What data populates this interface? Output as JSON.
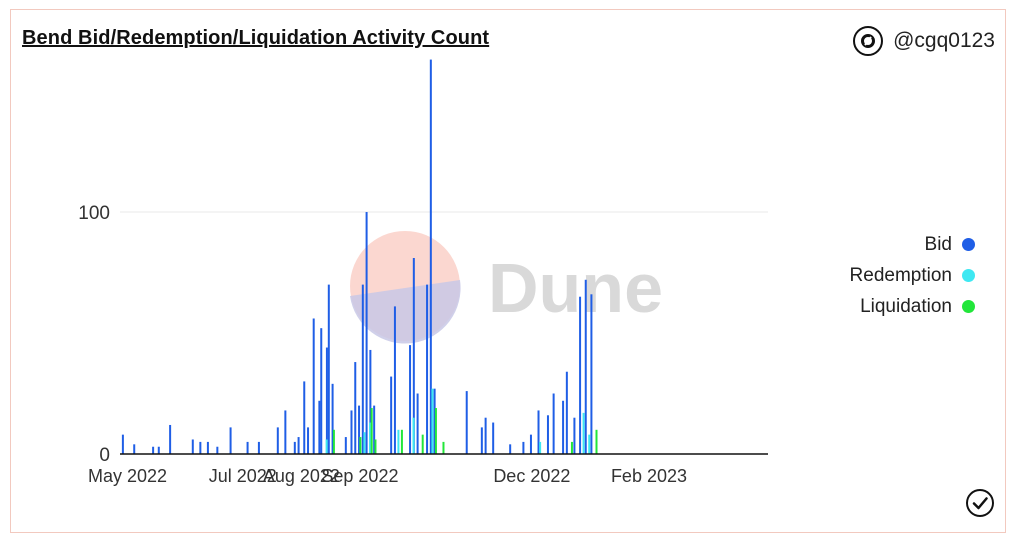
{
  "header": {
    "title": "Bend Bid/Redemption/Liquidation Activity Count",
    "author": "@cgq0123"
  },
  "watermark": {
    "text": "Dune"
  },
  "colors": {
    "bid": "#1f5ee6",
    "redemption": "#3ee8f2",
    "liquidation": "#22e63a"
  },
  "chart_data": {
    "type": "bar",
    "title": "Bend Bid/Redemption/Liquidation Activity Count",
    "x_range": [
      "2022-04-27",
      "2023-04-05"
    ],
    "ylim": [
      0,
      162
    ],
    "y_ticks": [
      0,
      100
    ],
    "x_ticks": [
      {
        "date": "2022-05-01",
        "label": "May 2022"
      },
      {
        "date": "2022-07-01",
        "label": "Jul 2022"
      },
      {
        "date": "2022-08-01",
        "label": "Aug 2022"
      },
      {
        "date": "2022-09-01",
        "label": "Sep 2022"
      },
      {
        "date": "2022-12-01",
        "label": "Dec 2022"
      },
      {
        "date": "2023-02-01",
        "label": "Feb 2023"
      }
    ],
    "legend_position": "right",
    "grid": true,
    "series": [
      {
        "name": "Bid",
        "color": "#1f5ee6",
        "points": [
          [
            "2022-04-28",
            8
          ],
          [
            "2022-05-04",
            4
          ],
          [
            "2022-05-14",
            3
          ],
          [
            "2022-05-17",
            3
          ],
          [
            "2022-05-23",
            12
          ],
          [
            "2022-06-04",
            6
          ],
          [
            "2022-06-08",
            5
          ],
          [
            "2022-06-12",
            5
          ],
          [
            "2022-06-17",
            3
          ],
          [
            "2022-06-24",
            11
          ],
          [
            "2022-07-03",
            5
          ],
          [
            "2022-07-09",
            5
          ],
          [
            "2022-07-19",
            11
          ],
          [
            "2022-07-23",
            18
          ],
          [
            "2022-07-28",
            5
          ],
          [
            "2022-07-30",
            7
          ],
          [
            "2022-08-02",
            30
          ],
          [
            "2022-08-04",
            11
          ],
          [
            "2022-08-07",
            56
          ],
          [
            "2022-08-10",
            22
          ],
          [
            "2022-08-11",
            52
          ],
          [
            "2022-08-14",
            44
          ],
          [
            "2022-08-15",
            70
          ],
          [
            "2022-08-17",
            29
          ],
          [
            "2022-08-24",
            7
          ],
          [
            "2022-08-27",
            18
          ],
          [
            "2022-08-29",
            38
          ],
          [
            "2022-08-31",
            20
          ],
          [
            "2022-09-02",
            70
          ],
          [
            "2022-09-04",
            100
          ],
          [
            "2022-09-06",
            43
          ],
          [
            "2022-09-08",
            20
          ],
          [
            "2022-09-17",
            32
          ],
          [
            "2022-09-19",
            61
          ],
          [
            "2022-09-27",
            45
          ],
          [
            "2022-09-29",
            81
          ],
          [
            "2022-10-01",
            25
          ],
          [
            "2022-10-06",
            70
          ],
          [
            "2022-10-08",
            163
          ],
          [
            "2022-10-10",
            27
          ],
          [
            "2022-10-27",
            26
          ],
          [
            "2022-11-04",
            11
          ],
          [
            "2022-11-06",
            15
          ],
          [
            "2022-11-10",
            13
          ],
          [
            "2022-11-19",
            4
          ],
          [
            "2022-11-26",
            5
          ],
          [
            "2022-11-30",
            8
          ],
          [
            "2022-12-04",
            18
          ],
          [
            "2022-12-09",
            16
          ],
          [
            "2022-12-12",
            25
          ],
          [
            "2022-12-17",
            22
          ],
          [
            "2022-12-19",
            34
          ],
          [
            "2022-12-23",
            15
          ],
          [
            "2022-12-26",
            65
          ],
          [
            "2022-12-29",
            72
          ],
          [
            "2023-01-01",
            66
          ]
        ]
      },
      {
        "name": "Redemption",
        "color": "#3ee8f2",
        "points": [
          [
            "2022-08-13",
            6
          ],
          [
            "2022-09-02",
            9
          ],
          [
            "2022-09-05",
            13
          ],
          [
            "2022-09-20",
            10
          ],
          [
            "2022-09-28",
            15
          ],
          [
            "2022-10-08",
            27
          ],
          [
            "2022-12-04",
            5
          ],
          [
            "2022-12-27",
            17
          ],
          [
            "2022-12-30",
            8
          ]
        ]
      },
      {
        "name": "Liquidation",
        "color": "#22e63a",
        "points": [
          [
            "2022-08-16",
            10
          ],
          [
            "2022-08-30",
            7
          ],
          [
            "2022-09-05",
            19
          ],
          [
            "2022-09-07",
            6
          ],
          [
            "2022-09-21",
            10
          ],
          [
            "2022-10-02",
            8
          ],
          [
            "2022-10-09",
            19
          ],
          [
            "2022-10-13",
            5
          ],
          [
            "2022-12-20",
            5
          ],
          [
            "2023-01-02",
            10
          ]
        ]
      }
    ]
  }
}
